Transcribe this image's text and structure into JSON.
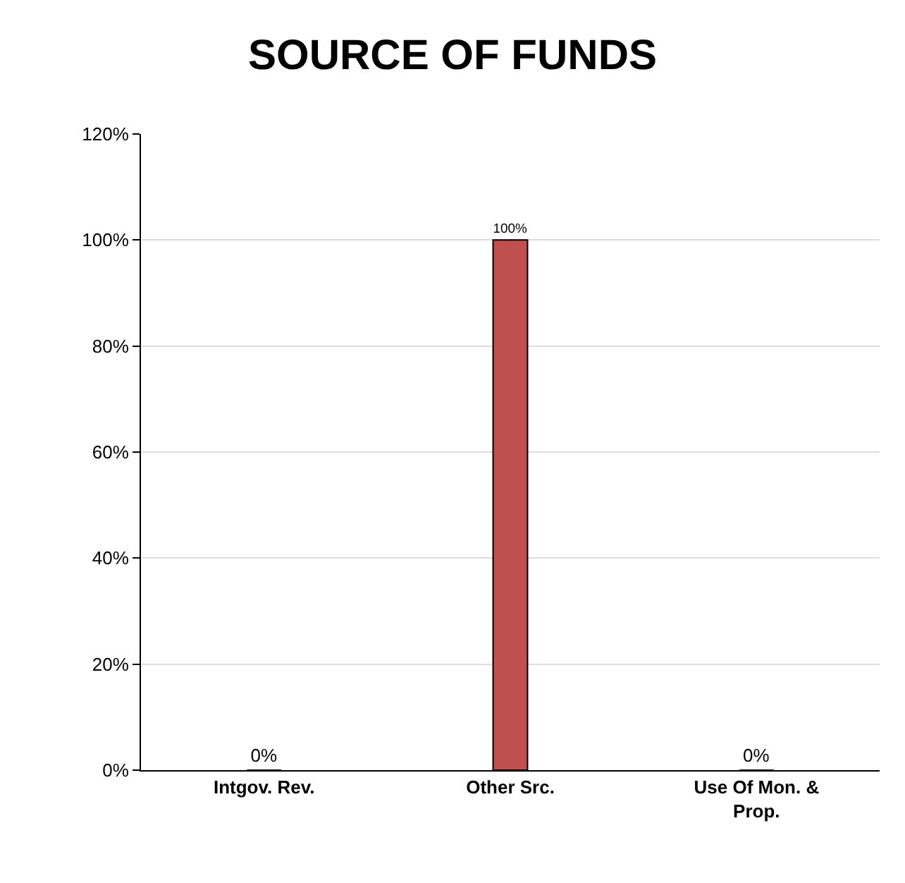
{
  "chart_data": {
    "type": "bar",
    "title": "SOURCE OF FUNDS",
    "categories": [
      "Intgov. Rev.",
      "Other Src.",
      "Use Of Mon. & Prop."
    ],
    "values": [
      0,
      100,
      0
    ],
    "color": "#c0504d",
    "value_labels": [
      "0%",
      "100%",
      "0%"
    ],
    "ylim": [
      0,
      120
    ],
    "yticks": [
      {
        "value": 0,
        "label": "0%"
      },
      {
        "value": 20,
        "label": "20%"
      },
      {
        "value": 40,
        "label": "40%"
      },
      {
        "value": 60,
        "label": "60%"
      },
      {
        "value": 80,
        "label": "80%"
      },
      {
        "value": 100,
        "label": "100%"
      },
      {
        "value": 120,
        "label": "120%"
      }
    ],
    "grid": "y"
  }
}
